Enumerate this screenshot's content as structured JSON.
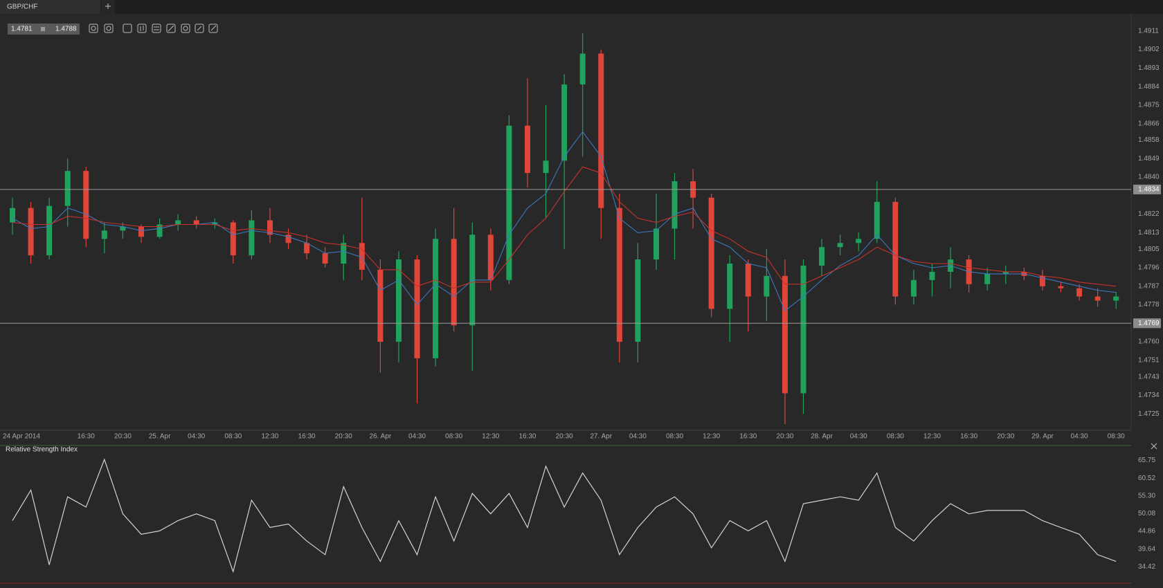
{
  "tab": {
    "title": "GBP/CHF"
  },
  "toolbar": {
    "bid": "1.4781",
    "ask": "1.4788"
  },
  "chart_data": [
    {
      "type": "candlestick",
      "categories": [
        "24 Apr 2014",
        null,
        null,
        null,
        "16:30",
        null,
        "20:30",
        null,
        "25. Apr",
        null,
        "04:30",
        null,
        "08:30",
        null,
        "12:30",
        null,
        "16:30",
        null,
        "20:30",
        null,
        "26. Apr",
        null,
        "04:30",
        null,
        "08:30",
        null,
        "12:30",
        null,
        "16:30",
        null,
        "20:30",
        null,
        "27. Apr",
        null,
        "04:30",
        null,
        "08:30",
        null,
        "12:30",
        null,
        "16:30",
        null,
        "20:30",
        null,
        "28. Apr",
        null,
        "04:30",
        null,
        "08:30",
        null,
        "12:30",
        null,
        "16:30",
        null,
        "20:30",
        null,
        "29. Apr",
        null,
        "04:30",
        null,
        "08:30"
      ],
      "open": [
        1.4818,
        1.4825,
        1.4802,
        1.4826,
        1.4843,
        1.481,
        1.4814,
        1.4816,
        1.4811,
        1.4817,
        1.4819,
        1.4817,
        1.4818,
        1.4802,
        1.4819,
        1.4812,
        1.4808,
        1.4803,
        1.4798,
        1.4808,
        1.4795,
        1.476,
        1.48,
        1.4752,
        1.481,
        1.4768,
        1.4812,
        1.479,
        1.4865,
        1.4842,
        1.4848,
        1.4885,
        1.49,
        1.4825,
        1.476,
        1.48,
        1.4815,
        1.4838,
        1.483,
        1.4776,
        1.4798,
        1.4782,
        1.4792,
        1.4735,
        1.4797,
        1.4806,
        1.4808,
        1.481,
        1.4828,
        1.4782,
        1.479,
        1.4794,
        1.48,
        1.4788,
        1.4793,
        1.4794,
        1.4792,
        1.4787,
        1.4786,
        1.4782,
        1.478
      ],
      "high": [
        1.483,
        1.4828,
        1.483,
        1.4849,
        1.4845,
        1.4818,
        1.4818,
        1.4817,
        1.482,
        1.4822,
        1.4821,
        1.482,
        1.4819,
        1.4824,
        1.4825,
        1.4815,
        1.4812,
        1.4806,
        1.4812,
        1.483,
        1.48,
        1.4804,
        1.4802,
        1.4815,
        1.4825,
        1.4818,
        1.4815,
        1.487,
        1.4888,
        1.4875,
        1.489,
        1.491,
        1.4902,
        1.4832,
        1.4808,
        1.4832,
        1.4842,
        1.4844,
        1.4832,
        1.4802,
        1.48,
        1.4805,
        1.48,
        1.48,
        1.481,
        1.4812,
        1.4813,
        1.4838,
        1.483,
        1.4795,
        1.4798,
        1.4806,
        1.4802,
        1.4796,
        1.4797,
        1.4796,
        1.4795,
        1.4789,
        1.4788,
        1.4786,
        1.4784
      ],
      "low": [
        1.4812,
        1.4798,
        1.48,
        1.4816,
        1.4806,
        1.4803,
        1.481,
        1.4808,
        1.481,
        1.4814,
        1.4815,
        1.4815,
        1.4798,
        1.48,
        1.4808,
        1.4805,
        1.48,
        1.4796,
        1.479,
        1.479,
        1.4745,
        1.475,
        1.473,
        1.4748,
        1.4765,
        1.4746,
        1.4785,
        1.4788,
        1.4835,
        1.482,
        1.4805,
        1.485,
        1.481,
        1.475,
        1.475,
        1.4795,
        1.48,
        1.4815,
        1.4772,
        1.476,
        1.4765,
        1.477,
        1.472,
        1.4725,
        1.4792,
        1.4802,
        1.4804,
        1.4808,
        1.4778,
        1.4778,
        1.4782,
        1.4786,
        1.4784,
        1.4785,
        1.4788,
        1.479,
        1.4785,
        1.4784,
        1.478,
        1.4777,
        1.4776
      ],
      "close": [
        1.4825,
        1.4802,
        1.4826,
        1.4843,
        1.481,
        1.4814,
        1.4816,
        1.4811,
        1.4817,
        1.4819,
        1.4817,
        1.4818,
        1.4802,
        1.4819,
        1.4812,
        1.4808,
        1.4803,
        1.4798,
        1.4808,
        1.4795,
        1.476,
        1.48,
        1.4752,
        1.481,
        1.4768,
        1.4812,
        1.479,
        1.4865,
        1.4842,
        1.4848,
        1.4885,
        1.49,
        1.4825,
        1.476,
        1.48,
        1.4815,
        1.4838,
        1.483,
        1.4776,
        1.4798,
        1.4782,
        1.4792,
        1.4735,
        1.4797,
        1.4806,
        1.4808,
        1.481,
        1.4828,
        1.4782,
        1.479,
        1.4794,
        1.48,
        1.4788,
        1.4793,
        1.4794,
        1.4792,
        1.4787,
        1.4786,
        1.4782,
        1.478,
        1.4782
      ],
      "up_color": "#1fa35c",
      "down_color": "#e0453a",
      "series": [
        {
          "color": "#3c78c0",
          "values": [
            1.482,
            1.4815,
            1.4816,
            1.4825,
            1.4822,
            1.4817,
            1.4816,
            1.4814,
            1.4815,
            1.4817,
            1.4817,
            1.4818,
            1.4812,
            1.4814,
            1.4813,
            1.4811,
            1.4808,
            1.4803,
            1.4804,
            1.4801,
            1.4785,
            1.479,
            1.4778,
            1.4788,
            1.4782,
            1.479,
            1.479,
            1.4812,
            1.4825,
            1.4832,
            1.485,
            1.4862,
            1.485,
            1.482,
            1.4813,
            1.4814,
            1.4822,
            1.4825,
            1.481,
            1.4806,
            1.4798,
            1.4796,
            1.4775,
            1.4782,
            1.479,
            1.4797,
            1.4802,
            1.4812,
            1.4802,
            1.4798,
            1.4796,
            1.4797,
            1.4794,
            1.4793,
            1.4793,
            1.4793,
            1.4791,
            1.4789,
            1.4787,
            1.4785,
            1.4784
          ]
        },
        {
          "color": "#c8322c",
          "values": [
            1.4818,
            1.4817,
            1.4817,
            1.4821,
            1.482,
            1.4818,
            1.4817,
            1.4816,
            1.4816,
            1.4817,
            1.4817,
            1.4817,
            1.4814,
            1.4815,
            1.4814,
            1.4813,
            1.4811,
            1.4808,
            1.4807,
            1.4805,
            1.4795,
            1.4795,
            1.4787,
            1.479,
            1.4786,
            1.4789,
            1.4789,
            1.48,
            1.4812,
            1.482,
            1.4833,
            1.4845,
            1.4842,
            1.4828,
            1.482,
            1.4818,
            1.4821,
            1.4823,
            1.4814,
            1.481,
            1.4804,
            1.4801,
            1.4788,
            1.4788,
            1.4792,
            1.4796,
            1.48,
            1.4806,
            1.4802,
            1.4799,
            1.4798,
            1.4798,
            1.4796,
            1.4795,
            1.4794,
            1.4794,
            1.4792,
            1.4791,
            1.4789,
            1.4788,
            1.4787
          ]
        }
      ],
      "hlines": [
        1.4834,
        1.4769
      ],
      "ylim": [
        1.4717,
        1.4919
      ],
      "yticks": [
        1.4725,
        1.4734,
        1.4743,
        1.4751,
        {
          "value": 1.476,
          "label": "1.4760"
        },
        1.4778,
        1.4787,
        1.4796,
        1.4805,
        1.4813,
        1.4822,
        {
          "value": 1.484,
          "label": "1.4840"
        },
        1.4849,
        1.4858,
        1.4866,
        1.4875,
        1.4884,
        1.4893,
        1.4902,
        1.4911
      ]
    },
    {
      "type": "line",
      "title": "Relative Strength Index",
      "color": "#d4d4d4",
      "values": [
        48,
        57,
        35,
        55,
        52,
        66,
        50,
        44,
        45,
        48,
        50,
        48,
        33,
        54,
        46,
        47,
        42,
        38,
        58,
        46,
        36,
        48,
        38,
        55,
        42,
        56,
        50,
        56,
        46,
        64,
        52,
        62,
        54,
        38,
        46,
        52,
        55,
        50,
        40,
        48,
        45,
        48,
        36,
        53,
        54,
        55,
        54,
        62,
        46,
        42,
        48,
        53,
        50,
        51,
        51,
        51,
        48,
        46,
        44,
        38,
        36
      ],
      "ylim": [
        29,
        69.7
      ],
      "yticks": [
        34.42,
        39.64,
        44.86,
        50.08,
        {
          "value": 55.3,
          "label": "55.30"
        },
        60.52,
        65.75
      ]
    }
  ]
}
